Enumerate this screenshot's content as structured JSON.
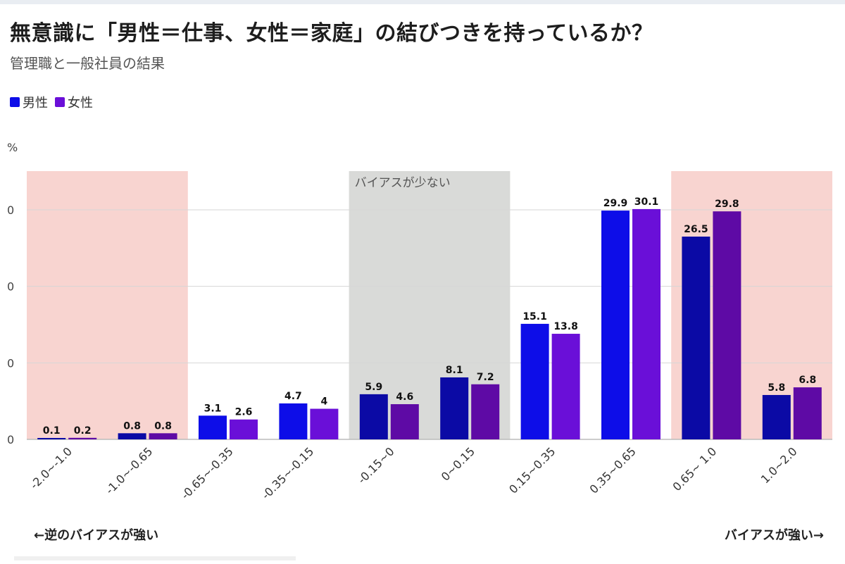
{
  "chart_data": {
    "type": "bar",
    "title": "無意識に「男性＝仕事、女性＝家庭」の結びつきを持っているか？",
    "subtitle": "管理職と一般社員の結果",
    "ylabel": "%",
    "ylim": [
      0,
      35
    ],
    "ytick_labels": [
      "0",
      "0",
      "0",
      "0"
    ],
    "categories": [
      "-2.0~-1.0",
      "-1.0~-0.65",
      "-0.65~-0.35",
      "-0.35~-0.15",
      "-0.15~0",
      "0~0.15",
      "0.15~0.35",
      "0.35~0.65",
      "0.65~ 1.0",
      "1.0~2.0"
    ],
    "series": [
      {
        "name": "男性",
        "values": [
          0.1,
          0.8,
          3.1,
          4.7,
          5.9,
          8.1,
          15.1,
          29.9,
          26.5,
          5.8
        ],
        "labels": [
          "0.1",
          "0.8",
          "3.1",
          "4.7",
          "5.9",
          "8.1",
          "15.1",
          "29.9",
          "26.5",
          "5.8"
        ]
      },
      {
        "name": "女性",
        "values": [
          0.2,
          0.8,
          2.6,
          4,
          4.6,
          7.2,
          13.8,
          30.1,
          29.8,
          6.8
        ],
        "labels": [
          "0.2",
          "0.8",
          "2.6",
          "4",
          "4.6",
          "7.2",
          "13.8",
          "30.1",
          "29.8",
          "6.8"
        ]
      }
    ],
    "shaded_regions": [
      {
        "from_category": 0,
        "to_category": 1,
        "color": "#f8d4d0",
        "label": ""
      },
      {
        "from_category": 4,
        "to_category": 5,
        "color": "#d9dad8",
        "label": "バイアスが少ない"
      },
      {
        "from_category": 8,
        "to_category": 9,
        "color": "#f8d4d0",
        "label": ""
      }
    ],
    "legend": "top-left",
    "grid": true
  },
  "colors": {
    "male_bright": "#0d0de8",
    "male_dark": "#0b0aa5",
    "female_bright": "#6a0fd8",
    "female_dark": "#5e0aa5",
    "shade_pink": "#f8d4d0",
    "shade_gray": "#d9dad8"
  },
  "notes": {
    "left": "←逆のバイアスが強い",
    "right": "バイアスが強い→"
  }
}
